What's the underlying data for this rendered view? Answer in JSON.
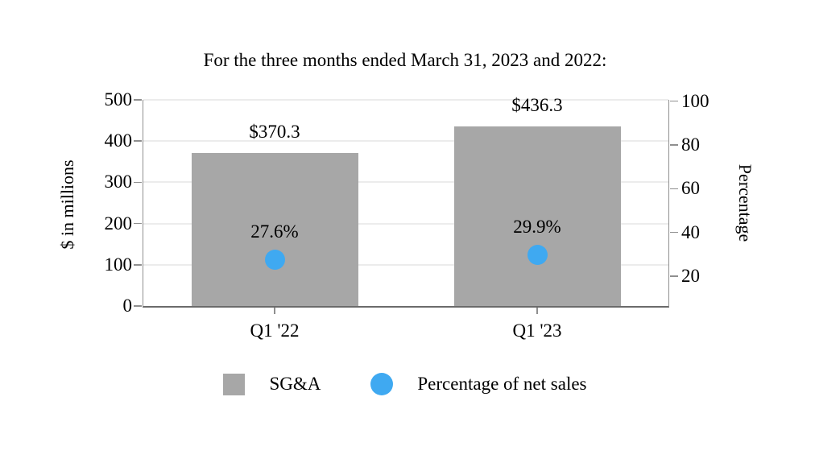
{
  "chart_data": {
    "type": "combo_bar_scatter_dual_axis",
    "title": "For the three months ended March 31, 2023 and 2022:",
    "categories": [
      "Q1 '22",
      "Q1 '23"
    ],
    "series": [
      {
        "name": "SG&A",
        "type": "bar",
        "axis": "left",
        "values": [
          370.3,
          436.3
        ],
        "labels": [
          "$370.3",
          "$436.3"
        ],
        "color": "#a7a7a7"
      },
      {
        "name": "Percentage of net sales",
        "type": "scatter",
        "axis": "right",
        "values": [
          27.6,
          29.9
        ],
        "labels": [
          "27.6%",
          "29.9%"
        ],
        "color": "#3fa9f1"
      }
    ],
    "left_axis": {
      "label": "$ in millions",
      "ticks": [
        0,
        100,
        200,
        300,
        400,
        500
      ],
      "range": [
        0,
        500
      ]
    },
    "right_axis": {
      "label": "Percentage",
      "ticks": [
        20,
        40,
        60,
        80,
        100
      ],
      "visual_range": [
        6.4,
        100.6
      ]
    },
    "grid": true,
    "legend_position": "bottom"
  },
  "colors": {
    "gridline": "#ececec",
    "axis_line": "#8f8f8f",
    "bottom_axis_line": "#6b6b6b",
    "background": "#ffffff",
    "text": "#000000"
  }
}
